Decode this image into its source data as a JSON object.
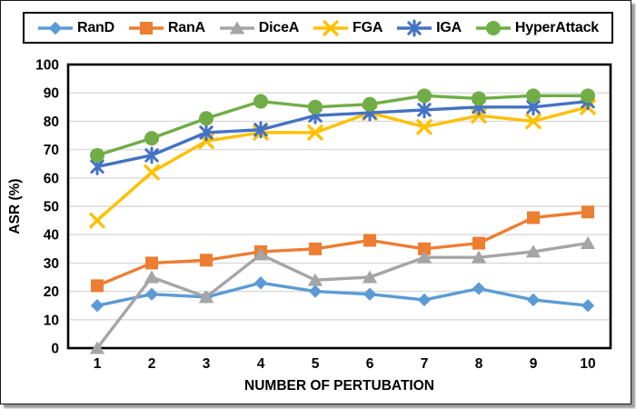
{
  "window": {
    "background": "#ffffff",
    "border_color": "#161616",
    "shadow_color": "#9a9a9a"
  },
  "chart_data": {
    "type": "line",
    "title": "",
    "xlabel": "NUMBER OF PERTUBATION",
    "ylabel": "ASR (%)",
    "x": [
      1,
      2,
      3,
      4,
      5,
      6,
      7,
      8,
      9,
      10
    ],
    "ylim": [
      0,
      100
    ],
    "ytick_step": 10,
    "grid": true,
    "gridline_color": "#d9d9d9",
    "axis_color": "#000000",
    "tick_font_color": "#000000",
    "legend_position": "top",
    "series": [
      {
        "name": "RanD",
        "color": "#5B9BD5",
        "marker": "diamond",
        "values": [
          15,
          19,
          18,
          23,
          20,
          19,
          17,
          21,
          17,
          15
        ]
      },
      {
        "name": "RanA",
        "color": "#ED7D31",
        "marker": "square",
        "values": [
          22,
          30,
          31,
          34,
          35,
          38,
          35,
          37,
          46,
          48
        ]
      },
      {
        "name": "DiceA",
        "color": "#A5A5A5",
        "marker": "triangle",
        "values": [
          0,
          25,
          18,
          33,
          24,
          25,
          32,
          32,
          34,
          37
        ]
      },
      {
        "name": "FGA",
        "color": "#FFC000",
        "marker": "x",
        "values": [
          45,
          62,
          73,
          76,
          76,
          83,
          78,
          82,
          80,
          85
        ]
      },
      {
        "name": "IGA",
        "color": "#4472C4",
        "marker": "asterisk",
        "values": [
          64,
          68,
          76,
          77,
          82,
          83,
          84,
          85,
          85,
          87
        ]
      },
      {
        "name": "HyperAttack",
        "color": "#70AD47",
        "marker": "circle",
        "values": [
          68,
          74,
          81,
          87,
          85,
          86,
          89,
          88,
          89,
          89
        ]
      }
    ]
  }
}
